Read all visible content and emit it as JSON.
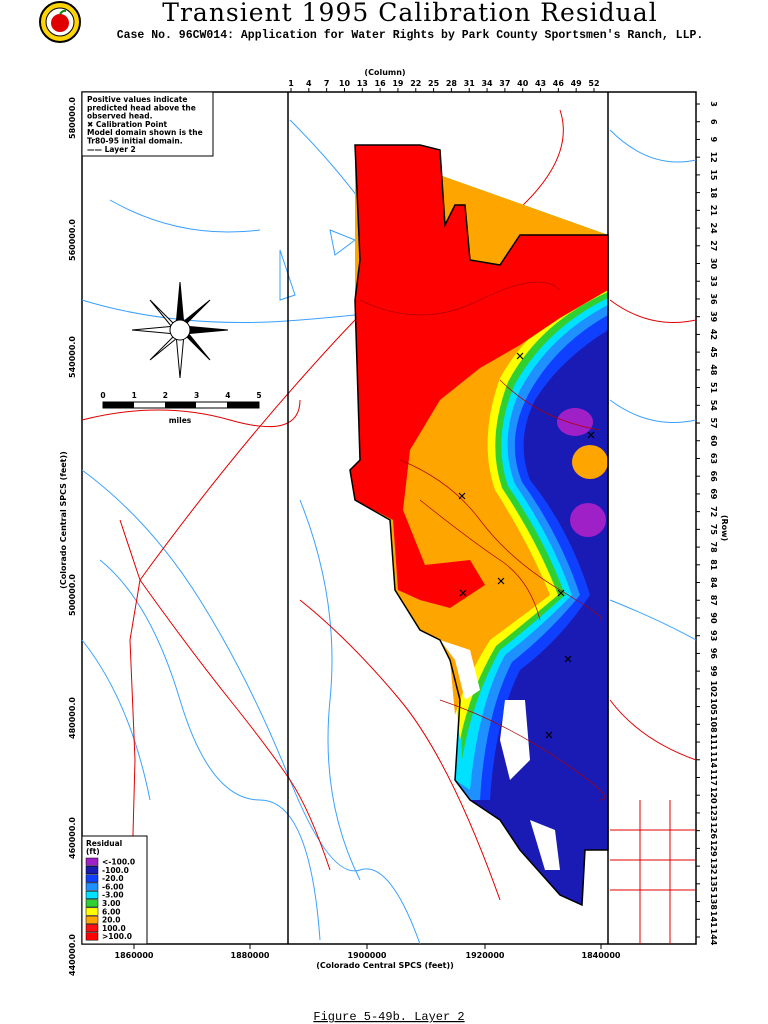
{
  "header": {
    "title": "Transient 1995 Calibration Residual",
    "subtitle": "Case No. 96CW014: Application for Water Rights by Park County Sportsmen's Ranch, LLP."
  },
  "note": {
    "lines": [
      "Positive values indicate",
      "predicted head above the",
      "observed head.",
      "✖ Calibration Point",
      "Model domain shown is the",
      "Tr80-95 initial domain.",
      "—— Layer 2"
    ]
  },
  "column_axis": {
    "label": "(Column)",
    "ticks": [
      1,
      4,
      7,
      10,
      13,
      16,
      19,
      22,
      25,
      28,
      31,
      34,
      37,
      40,
      43,
      46,
      49,
      52
    ]
  },
  "row_axis": {
    "label": "(Row)",
    "ticks": [
      3,
      6,
      9,
      12,
      15,
      18,
      21,
      24,
      27,
      30,
      33,
      36,
      39,
      42,
      45,
      48,
      51,
      54,
      57,
      60,
      63,
      66,
      69,
      72,
      75,
      78,
      81,
      84,
      87,
      90,
      93,
      96,
      99,
      102,
      105,
      108,
      111,
      114,
      117,
      120,
      123,
      126,
      129,
      132,
      135,
      138,
      141,
      144
    ]
  },
  "y_axis": {
    "label": "(Colorado Central SPCS (feet))",
    "ticks": [
      "580000.0",
      "560000.0",
      "540000.0",
      "500000.0",
      "480000.0",
      "460000.0",
      "440000.0"
    ]
  },
  "x_axis": {
    "label": "(Colorado Central SPCS (feet))",
    "ticks": [
      "1860000",
      "1880000",
      "1900000",
      "1920000",
      "1840000"
    ]
  },
  "scale_bar": {
    "ticks": [
      "0",
      "1",
      "2",
      "3",
      "4",
      "5"
    ],
    "unit": "miles"
  },
  "legend": {
    "title": "Residual",
    "unit": "(ft)",
    "items": [
      {
        "label": "<-100.0",
        "color": "#a020c8"
      },
      {
        "label": "-100.0",
        "color": "#1a1ab4"
      },
      {
        "label": "-20.0",
        "color": "#1040ff"
      },
      {
        "label": "-6.00",
        "color": "#1e90ff"
      },
      {
        "label": "-3.00",
        "color": "#00e0ff"
      },
      {
        "label": "3.00",
        "color": "#30d030"
      },
      {
        "label": "6.00",
        "color": "#ffff00"
      },
      {
        "label": "20.0",
        "color": "#ffa500"
      },
      {
        "label": "100.0",
        "color": "#ff1010"
      },
      {
        "label": ">100.0",
        "color": "#ff0000"
      }
    ]
  },
  "caption": "Figure 5-49b.  Layer 2"
}
